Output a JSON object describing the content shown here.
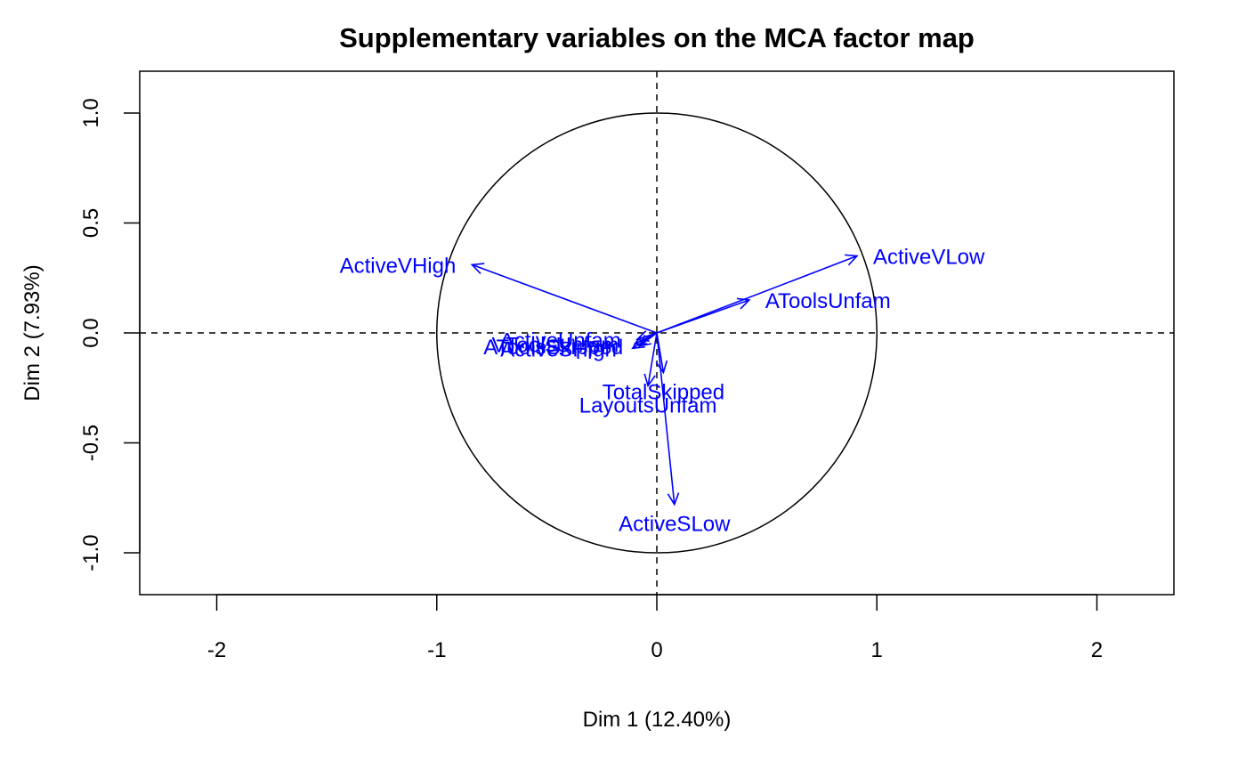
{
  "chart_data": {
    "type": "scatter",
    "subtype": "variables-factor-map",
    "title": "Supplementary variables on the MCA factor map",
    "xlabel": "Dim 1 (12.40%)",
    "ylabel": "Dim 2 (7.93%)",
    "xlim": [
      -2.35,
      2.35
    ],
    "ylim": [
      -1.19,
      1.19
    ],
    "x_ticks": [
      -2,
      -1,
      0,
      1,
      2
    ],
    "y_ticks": [
      -1.0,
      -0.5,
      0.0,
      0.5,
      1.0
    ],
    "x_tick_labels": [
      "-2",
      "-1",
      "0",
      "1",
      "2"
    ],
    "y_tick_labels": [
      "-1.0",
      "-0.5",
      "0.0",
      "0.5",
      "1.0"
    ],
    "reference_lines": {
      "x": 0,
      "y": 0,
      "style": "dashed"
    },
    "unit_circle": true,
    "arrow_color": "#0000ff",
    "arrows": [
      {
        "label": "ActiveVHigh",
        "x": -0.84,
        "y": 0.31,
        "label_anchor": "end"
      },
      {
        "label": "ActiveVLow",
        "x": 0.91,
        "y": 0.35,
        "label_anchor": "start"
      },
      {
        "label": "AToolsUnfam",
        "x": 0.42,
        "y": 0.15,
        "label_anchor": "start"
      },
      {
        "label": "ActiveUnfam",
        "x": -0.09,
        "y": -0.03,
        "label_anchor": "end"
      },
      {
        "label": "VToolsUnfam",
        "x": -0.1,
        "y": -0.05,
        "label_anchor": "end"
      },
      {
        "label": "AToolsSkipped",
        "x": -0.08,
        "y": -0.06,
        "label_anchor": "end"
      },
      {
        "label": "ActiveSHigh",
        "x": -0.11,
        "y": -0.07,
        "label_anchor": "end"
      },
      {
        "label": "TotalSkipped",
        "x": 0.03,
        "y": -0.18,
        "label_anchor": "middle"
      },
      {
        "label": "LayoutsUnfam",
        "x": -0.04,
        "y": -0.24,
        "label_anchor": "middle"
      },
      {
        "label": "ActiveSLow",
        "x": 0.08,
        "y": -0.78,
        "label_anchor": "middle"
      }
    ]
  }
}
